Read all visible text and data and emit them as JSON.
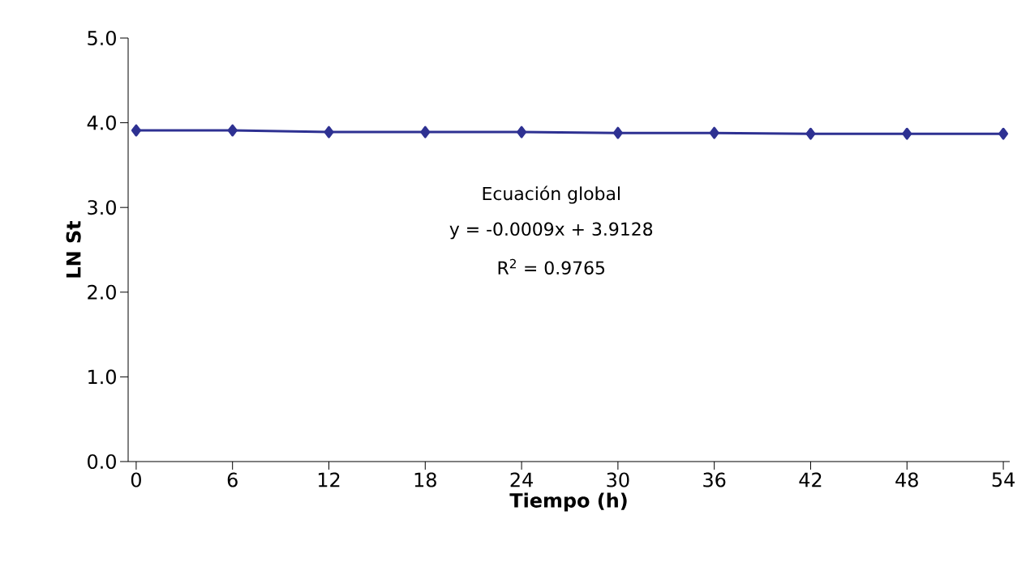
{
  "chart_data": {
    "type": "line",
    "xlabel": "Tiempo (h)",
    "ylabel": "LN St",
    "x": [
      0,
      6,
      12,
      18,
      24,
      30,
      36,
      42,
      48,
      54
    ],
    "series": [
      {
        "color": "#2e3192",
        "values": [
          3.91,
          3.91,
          3.89,
          3.89,
          3.89,
          3.88,
          3.88,
          3.87,
          3.87,
          3.87
        ]
      }
    ],
    "xlim": [
      -0.5,
      54.4
    ],
    "ylim": [
      0,
      5
    ],
    "xticks": [
      0,
      6,
      12,
      18,
      24,
      30,
      36,
      42,
      48,
      54
    ],
    "yticks": [
      {
        "value": 0,
        "label": "0.0"
      },
      {
        "value": 1,
        "label": "1.0"
      },
      {
        "value": 2,
        "label": "2.0"
      },
      {
        "value": 3,
        "label": "3.0"
      },
      {
        "value": 4,
        "label": "4.0"
      },
      {
        "value": 5,
        "label": "5.0"
      }
    ],
    "annotations": [
      "Ecuación global",
      "y = -0.0009x + 3.9128",
      "R$^{2}$ = 0.9765"
    ],
    "marker": "diamond",
    "line_style": "solid"
  }
}
